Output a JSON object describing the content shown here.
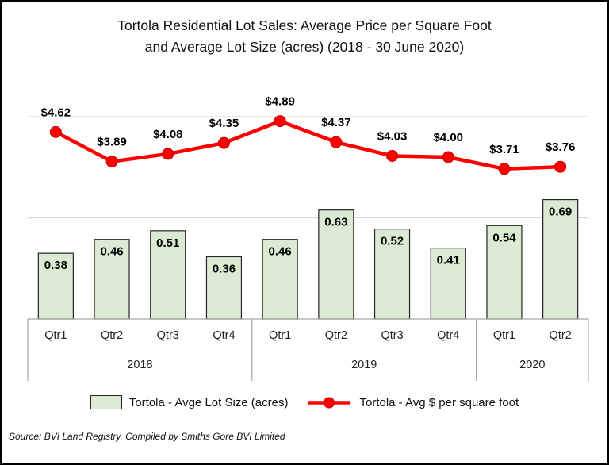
{
  "title": {
    "line1": "Tortola Residential Lot Sales: Average Price per Square Foot",
    "line2": "and Average Lot Size (acres) (2018 - 30 June 2020)"
  },
  "source": "Source: BVI Land Registry. Compiled by Smiths Gore BVI Limited",
  "chart_data": {
    "type": "combo",
    "categories": [
      "Qtr1",
      "Qtr2",
      "Qtr3",
      "Qtr4",
      "Qtr1",
      "Qtr2",
      "Qtr3",
      "Qtr4",
      "Qtr1",
      "Qtr2"
    ],
    "year_groups": [
      {
        "label": "2018",
        "span": 4
      },
      {
        "label": "2019",
        "span": 4
      },
      {
        "label": "2020",
        "span": 2
      }
    ],
    "series": [
      {
        "name": "Tortola - Avge Lot Size (acres)",
        "type": "bar",
        "axis": "primary",
        "values": [
          0.38,
          0.46,
          0.51,
          0.36,
          0.46,
          0.63,
          0.52,
          0.41,
          0.54,
          0.69
        ],
        "labels": [
          "0.38",
          "0.46",
          "0.51",
          "0.36",
          "0.46",
          "0.63",
          "0.52",
          "0.41",
          "0.54",
          "0.69"
        ]
      },
      {
        "name": "Tortola - Avg $ per square foot",
        "type": "line",
        "axis": "secondary",
        "values": [
          4.62,
          3.89,
          4.08,
          4.35,
          4.89,
          4.37,
          4.03,
          4.0,
          3.71,
          3.76
        ],
        "labels": [
          "$4.62",
          "$3.89",
          "$4.08",
          "$4.35",
          "$4.89",
          "$4.37",
          "$4.03",
          "$4.00",
          "$3.71",
          "$3.76"
        ]
      }
    ],
    "primary_axis": {
      "min": 0,
      "visible": false
    },
    "secondary_axis": {
      "min": 0,
      "max": 5,
      "visible": false,
      "gridline_values": [
        2.5,
        5
      ]
    },
    "grid": true,
    "legend_position": "bottom",
    "colors": {
      "bar_fill": "#dbead3",
      "bar_stroke": "#262626",
      "line": "#ff0000",
      "marker_fill": "#ff0000",
      "marker_stroke": "#c00000",
      "gridline": "#d9d9d9",
      "axis": "#a6a6a6",
      "label_text": "#000000",
      "tick_text": "#212121"
    }
  }
}
